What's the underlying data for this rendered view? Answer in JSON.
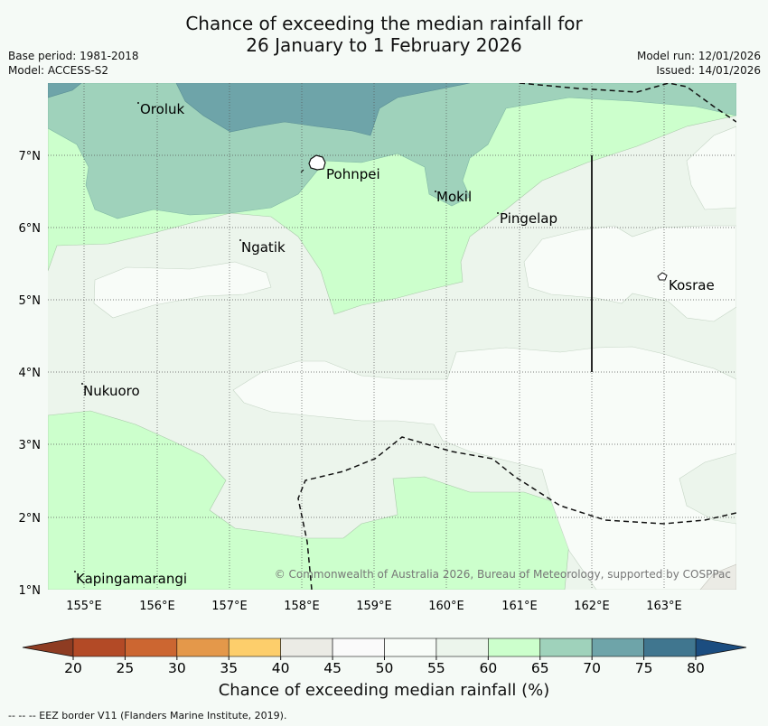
{
  "title_line1": "Chance of exceeding the median rainfall for",
  "title_line2": "26 January to 1 February 2026",
  "base_period": "Base period: 1981-2018",
  "model": "Model: ACCESS-S2",
  "model_run": "Model run: 12/01/2026",
  "issued": "Issued: 14/01/2026",
  "longitude_labels": [
    "155°E",
    "156°E",
    "157°E",
    "158°E",
    "159°E",
    "160°E",
    "161°E",
    "162°E",
    "163°E"
  ],
  "latitude_labels": [
    "7°N",
    "6°N",
    "5°N",
    "4°N",
    "3°N",
    "2°N",
    "1°N"
  ],
  "places": [
    "Oroluk",
    "Pohnpei",
    "Mokil",
    "Pingelap",
    "Ngatik",
    "Kosrae",
    "Nukuoro",
    "Kapingamarangi"
  ],
  "copyright": "© Commonwealth of Australia 2026, Bureau of Meteorology, supported by COSPPac",
  "colorbar": {
    "title": "Chance of exceeding median rainfall (%)",
    "ticks": [
      "20",
      "25",
      "30",
      "35",
      "40",
      "45",
      "50",
      "55",
      "60",
      "65",
      "70",
      "75",
      "80"
    ],
    "colors": [
      "#b34a26",
      "#cc6631",
      "#e4984a",
      "#fdce6b",
      "#ebebe5",
      "#fafafa",
      "#f8fcf8",
      "#ecf5ec",
      "#ccffcc",
      "#9fd2bb",
      "#6ea4a9",
      "#40768f"
    ],
    "under_color": "#8e3c22",
    "over_color": "#1b4d80"
  },
  "legend_footnote": "--  --  -- EEZ border V11 (Flanders Marine Institute, 2019).",
  "colors": {
    "background": "#f5faf6",
    "eez_line": "#111111"
  }
}
